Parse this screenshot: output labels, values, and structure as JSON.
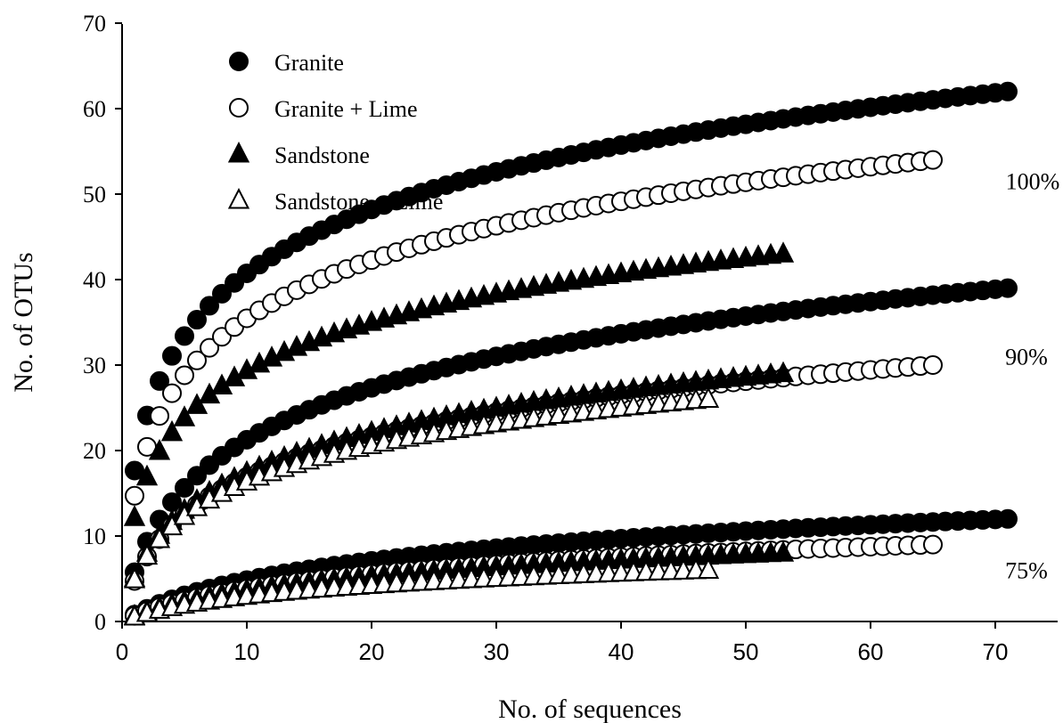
{
  "chart_data": {
    "type": "scatter",
    "title": "",
    "xlabel": "No. of sequences",
    "ylabel": "No. of OTUs",
    "xlim": [
      0,
      75
    ],
    "ylim": [
      0,
      70
    ],
    "xticks": [
      "0",
      "10",
      "20",
      "30",
      "40",
      "50",
      "60",
      "70"
    ],
    "yticks": [
      "0",
      "10",
      "20",
      "30",
      "40",
      "50",
      "60",
      "70"
    ],
    "grid": false,
    "legend_position": "top-left",
    "legend": [
      {
        "label": "Granite",
        "marker": "circle",
        "fill": "filled"
      },
      {
        "label": "Granite + Lime",
        "marker": "circle",
        "fill": "open"
      },
      {
        "label": "Sandstone",
        "marker": "triangle",
        "fill": "filled"
      },
      {
        "label": "Sandstone + Lime",
        "marker": "triangle",
        "fill": "open"
      }
    ],
    "annotations": [
      {
        "text": "100%",
        "x": 73,
        "y": 51.5
      },
      {
        "text": "90%",
        "x": 72.5,
        "y": 31
      },
      {
        "text": "75%",
        "x": 72.5,
        "y": 6
      }
    ],
    "series": [
      {
        "name": "Granite",
        "group": "100%",
        "marker": "circle",
        "fill": "filled",
        "n_max": 71,
        "y_at_max": 62,
        "curvature": 0.25
      },
      {
        "name": "Granite + Lime",
        "group": "100%",
        "marker": "circle",
        "fill": "open",
        "n_max": 65,
        "y_at_max": 54,
        "curvature": 0.3
      },
      {
        "name": "Sandstone",
        "group": "100%",
        "marker": "triangle",
        "fill": "filled",
        "n_max": 53,
        "y_at_max": 43,
        "curvature": 0.3
      },
      {
        "name": "Granite",
        "group": "90%",
        "marker": "circle",
        "fill": "filled",
        "n_max": 71,
        "y_at_max": 39,
        "curvature": 1.2
      },
      {
        "name": "Granite + Lime",
        "group": "90%",
        "marker": "circle",
        "fill": "open",
        "n_max": 65,
        "y_at_max": 30,
        "curvature": 1.1
      },
      {
        "name": "Sandstone",
        "group": "90%",
        "marker": "triangle",
        "fill": "filled",
        "n_max": 53,
        "y_at_max": 29,
        "curvature": 1.0
      },
      {
        "name": "Sandstone + Lime",
        "group": "90%",
        "marker": "triangle",
        "fill": "open",
        "n_max": 47,
        "y_at_max": 26,
        "curvature": 0.9
      },
      {
        "name": "Granite",
        "group": "75%",
        "marker": "circle",
        "fill": "filled",
        "n_max": 71,
        "y_at_max": 12,
        "curvature": 5.0
      },
      {
        "name": "Granite + Lime",
        "group": "75%",
        "marker": "circle",
        "fill": "open",
        "n_max": 65,
        "y_at_max": 9,
        "curvature": 4.5
      },
      {
        "name": "Sandstone",
        "group": "75%",
        "marker": "triangle",
        "fill": "filled",
        "n_max": 53,
        "y_at_max": 8,
        "curvature": 4.5
      },
      {
        "name": "Sandstone + Lime",
        "group": "75%",
        "marker": "triangle",
        "fill": "open",
        "n_max": 47,
        "y_at_max": 6,
        "curvature": 4.0
      }
    ]
  }
}
